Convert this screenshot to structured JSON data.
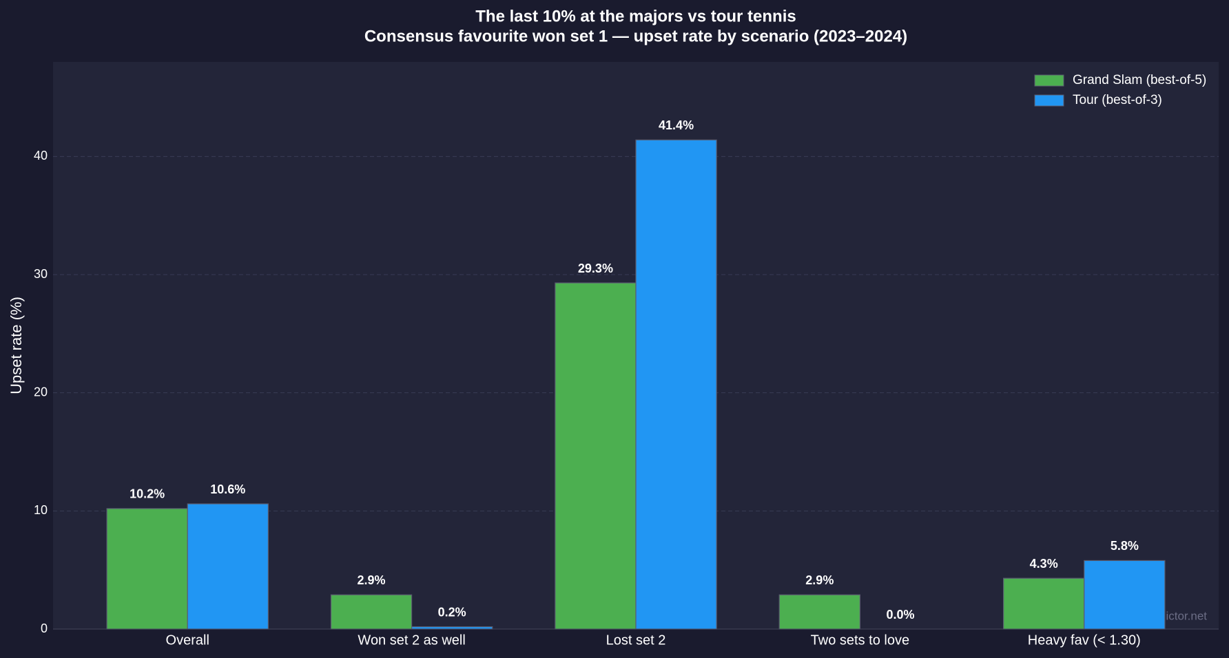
{
  "chart_data": {
    "type": "bar",
    "title": "The last 10% at the majors vs tour tennis",
    "subtitle": "Consensus favourite won set 1 — upset rate by scenario (2023–2024)",
    "y_label": "Upset rate (%)",
    "watermark": "tennispredictor.net",
    "categories": [
      "Overall",
      "Won set 2 as well",
      "Lost set 2",
      "Two sets to love",
      "Heavy fav (< 1.30)"
    ],
    "series": [
      {
        "name": "Grand Slam (best-of-5)",
        "color": "#4caf50",
        "values": [
          10.2,
          2.9,
          29.3,
          2.9,
          4.3
        ],
        "value_labels": [
          "10.2%",
          "2.9%",
          "29.3%",
          "2.9%",
          "4.3%"
        ]
      },
      {
        "name": "Tour (best-of-3)",
        "color": "#2196f3",
        "values": [
          10.6,
          0.2,
          41.4,
          0.0,
          5.8
        ],
        "value_labels": [
          "10.6%",
          "0.2%",
          "41.4%",
          "0.0%",
          "5.8%"
        ]
      }
    ],
    "ylim": [
      0,
      48
    ],
    "yticks": [
      0,
      10,
      20,
      30,
      40
    ],
    "grid": true,
    "legend": "upper right"
  }
}
